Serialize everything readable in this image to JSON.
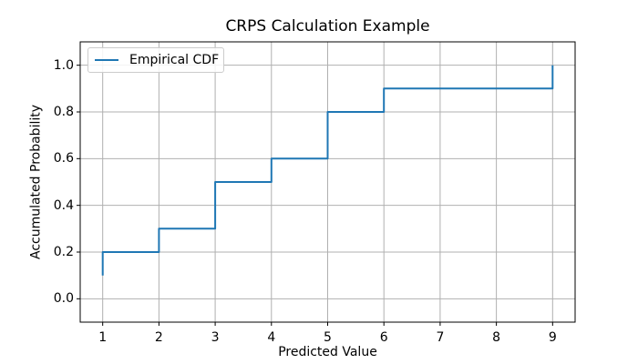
{
  "chart_data": {
    "type": "line",
    "subtype": "step",
    "title": "CRPS Calculation Example",
    "xlabel": "Predicted Value",
    "ylabel": "Accumulated Probability",
    "xlim": [
      0.6,
      9.4
    ],
    "ylim": [
      -0.1,
      1.1
    ],
    "grid": true,
    "xticks": {
      "values": [
        1,
        2,
        3,
        4,
        5,
        6,
        7,
        8,
        9
      ],
      "labels": [
        "1",
        "2",
        "3",
        "4",
        "5",
        "6",
        "7",
        "8",
        "9"
      ]
    },
    "yticks": {
      "values": [
        0.0,
        0.2,
        0.4,
        0.6,
        0.8,
        1.0
      ],
      "labels": [
        "0.0",
        "0.2",
        "0.4",
        "0.6",
        "0.8",
        "1.0"
      ]
    },
    "legend": {
      "position": "upper left",
      "entries": [
        {
          "label": "Empirical CDF",
          "color": "#1f77b4"
        }
      ]
    },
    "series": [
      {
        "name": "Empirical CDF",
        "color": "#1f77b4",
        "step_mode": "pre",
        "points": [
          [
            1,
            0.1
          ],
          [
            1,
            0.2
          ],
          [
            2,
            0.2
          ],
          [
            2,
            0.3
          ],
          [
            3,
            0.3
          ],
          [
            3,
            0.5
          ],
          [
            4,
            0.5
          ],
          [
            4,
            0.6
          ],
          [
            5,
            0.6
          ],
          [
            5,
            0.8
          ],
          [
            6,
            0.8
          ],
          [
            6,
            0.9
          ],
          [
            9,
            0.9
          ],
          [
            9,
            1.0
          ]
        ]
      }
    ],
    "colors": {
      "line": "#1f77b4",
      "grid": "#b0b0b0",
      "spine": "#000000",
      "text": "#000000",
      "legend_border": "#cccccc",
      "background": "#ffffff"
    }
  }
}
